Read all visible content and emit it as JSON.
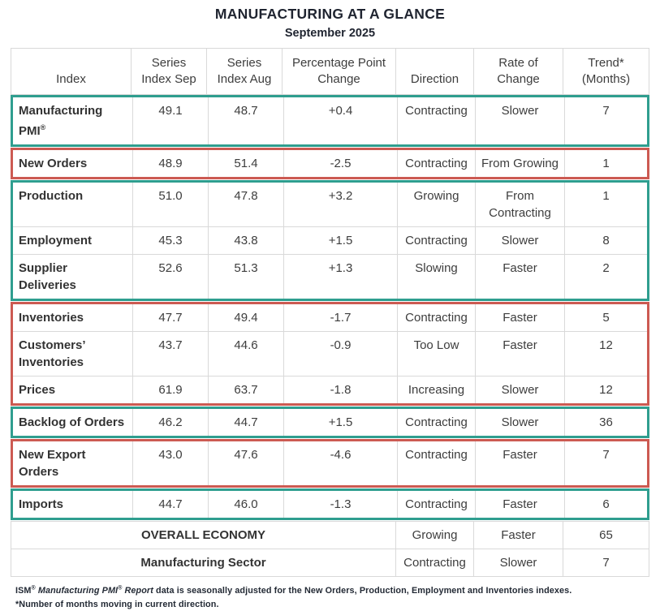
{
  "title": "MANUFACTURING AT A GLANCE",
  "subtitle": "September 2025",
  "reg": "®",
  "colors": {
    "green_box": "#2f9e8f",
    "red_box": "#cc5a52",
    "gridline": "#d9d9d9"
  },
  "table": {
    "columns": {
      "index": "Index",
      "sep": "Series\nIndex Sep",
      "aug": "Series\nIndex Aug",
      "change": "Percentage Point\nChange",
      "direction": "Direction",
      "rate": "Rate of\nChange",
      "trend": "Trend*\n(Months)"
    },
    "groups": [
      {
        "box_color": "green",
        "rows": [
          {
            "index": "Manufacturing PMI",
            "sep": "49.1",
            "aug": "48.7",
            "change": "+0.4",
            "direction": "Contracting",
            "rate": "Slower",
            "trend": "7"
          }
        ]
      },
      {
        "box_color": "red",
        "rows": [
          {
            "index": "New Orders",
            "sep": "48.9",
            "aug": "51.4",
            "change": "-2.5",
            "direction": "Contracting",
            "rate": "From Growing",
            "trend": "1"
          }
        ]
      },
      {
        "box_color": "green",
        "rows": [
          {
            "index": "Production",
            "sep": "51.0",
            "aug": "47.8",
            "change": "+3.2",
            "direction": "Growing",
            "rate": "From Contracting",
            "trend": "1"
          },
          {
            "index": "Employment",
            "sep": "45.3",
            "aug": "43.8",
            "change": "+1.5",
            "direction": "Contracting",
            "rate": "Slower",
            "trend": "8"
          },
          {
            "index": "Supplier Deliveries",
            "sep": "52.6",
            "aug": "51.3",
            "change": "+1.3",
            "direction": "Slowing",
            "rate": "Faster",
            "trend": "2"
          }
        ]
      },
      {
        "box_color": "red",
        "rows": [
          {
            "index": "Inventories",
            "sep": "47.7",
            "aug": "49.4",
            "change": "-1.7",
            "direction": "Contracting",
            "rate": "Faster",
            "trend": "5"
          },
          {
            "index": "Customers’ Inventories",
            "sep": "43.7",
            "aug": "44.6",
            "change": "-0.9",
            "direction": "Too Low",
            "rate": "Faster",
            "trend": "12"
          },
          {
            "index": "Prices",
            "sep": "61.9",
            "aug": "63.7",
            "change": "-1.8",
            "direction": "Increasing",
            "rate": "Slower",
            "trend": "12"
          }
        ]
      },
      {
        "box_color": "green",
        "rows": [
          {
            "index": "Backlog of Orders",
            "sep": "46.2",
            "aug": "44.7",
            "change": "+1.5",
            "direction": "Contracting",
            "rate": "Slower",
            "trend": "36"
          }
        ]
      },
      {
        "box_color": "red",
        "rows": [
          {
            "index": "New Export Orders",
            "sep": "43.0",
            "aug": "47.6",
            "change": "-4.6",
            "direction": "Contracting",
            "rate": "Faster",
            "trend": "7"
          }
        ]
      },
      {
        "box_color": "green",
        "rows": [
          {
            "index": "Imports",
            "sep": "44.7",
            "aug": "46.0",
            "change": "-1.3",
            "direction": "Contracting",
            "rate": "Faster",
            "trend": "6"
          }
        ]
      }
    ],
    "summary_rows": [
      {
        "label": "OVERALL ECONOMY",
        "direction": "Growing",
        "rate": "Faster",
        "trend": "65"
      },
      {
        "label": "Manufacturing Sector",
        "direction": "Contracting",
        "rate": "Slower",
        "trend": "7"
      }
    ]
  },
  "footnotes": {
    "f1_ism": "ISM",
    "f1_reg1": "®",
    "f1_italic1": " Manufacturing PMI",
    "f1_reg2": "®",
    "f1_italic2": " Report",
    "f1_rest": " data is seasonally adjusted for the New Orders, Production, Employment and Inventories indexes.",
    "f2": "*Number of months moving in current direction."
  }
}
